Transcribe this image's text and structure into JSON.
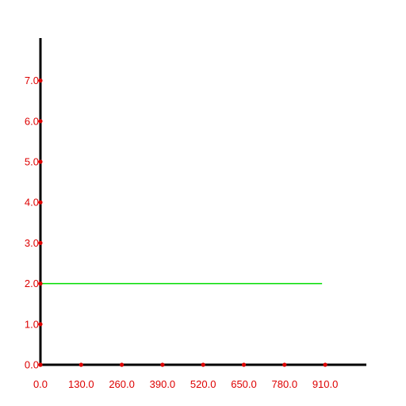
{
  "chart_data": {
    "type": "line",
    "title": "",
    "xlabel": "",
    "ylabel": "",
    "xlim": [
      0,
      1040
    ],
    "ylim": [
      0,
      8
    ],
    "x_ticks": [
      "0.0",
      "130.0",
      "260.0",
      "390.0",
      "520.0",
      "650.0",
      "780.0",
      "910.0"
    ],
    "x_tick_values": [
      0,
      130,
      260,
      390,
      520,
      650,
      780,
      910
    ],
    "y_ticks": [
      "0.0",
      "1.0",
      "2.0",
      "3.0",
      "4.0",
      "5.0",
      "6.0",
      "7.0"
    ],
    "y_tick_values": [
      0,
      1,
      2,
      3,
      4,
      5,
      6,
      7
    ],
    "grid": false,
    "series": [
      {
        "x": [
          0,
          900
        ],
        "y": [
          2,
          2
        ],
        "color": "#00dd00"
      }
    ],
    "colors": {
      "axis": "#000000",
      "tick": "#dd0000",
      "tick_label": "#dd0000"
    }
  }
}
